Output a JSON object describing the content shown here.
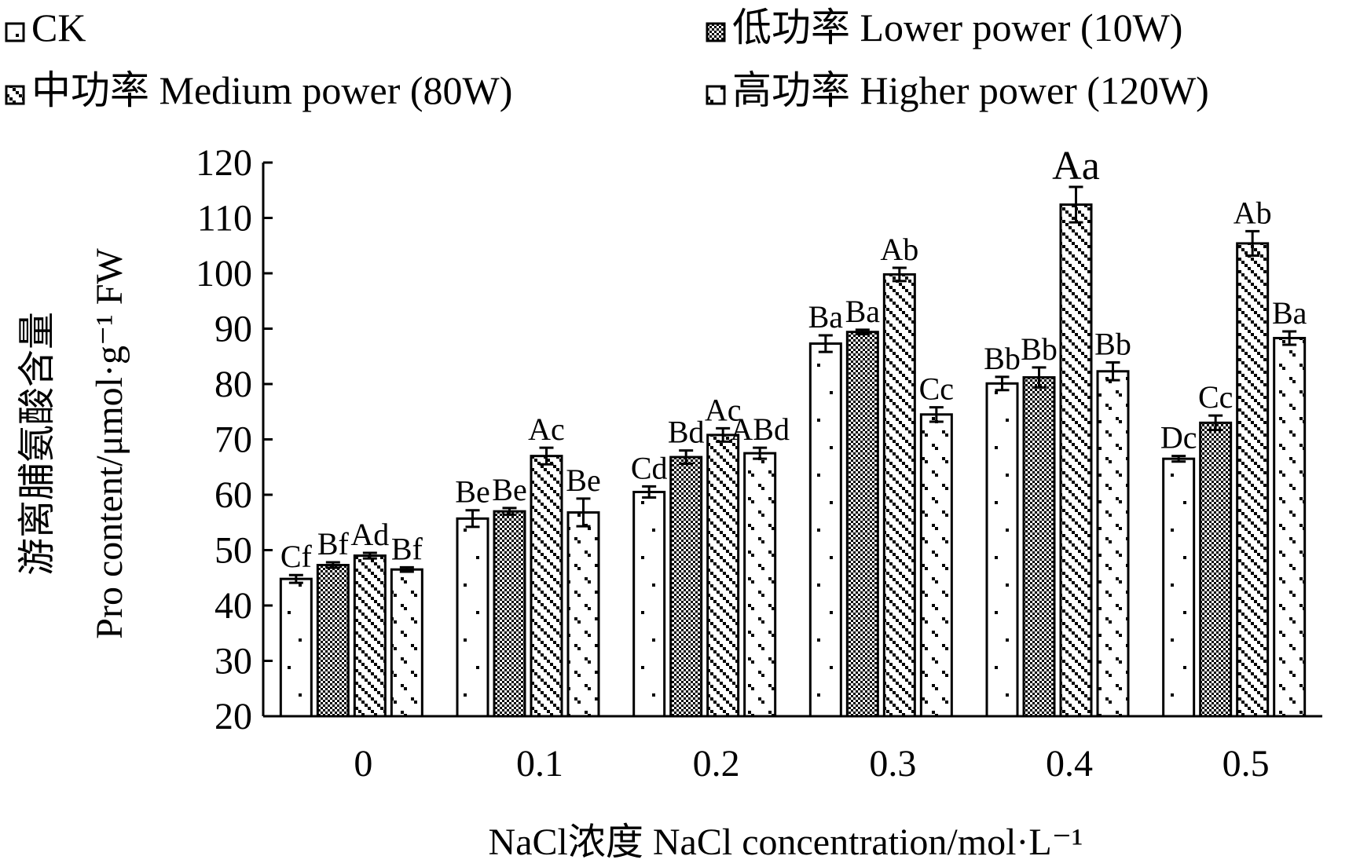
{
  "chart_data": {
    "type": "bar",
    "xlabel": "NaCl浓度 NaCl concentration/mol·L⁻¹",
    "ylabel_cn": "游离脯氨酸含量",
    "ylabel_en": "Pro content/μmol·g⁻¹ FW",
    "ylim": [
      20,
      120
    ],
    "yticks": [
      20,
      30,
      40,
      50,
      60,
      70,
      80,
      90,
      100,
      110,
      120
    ],
    "categories": [
      "0",
      "0.1",
      "0.2",
      "0.3",
      "0.4",
      "0.5"
    ],
    "legend_position": "top",
    "series": [
      {
        "name": "CK",
        "pattern": "dots",
        "values": [
          44.8,
          55.7,
          60.5,
          87.3,
          80.1,
          66.5
        ],
        "errors": [
          0.7,
          1.5,
          1.0,
          1.5,
          1.2,
          0.5
        ],
        "labels": [
          "Cf",
          "Be",
          "Cd",
          "Ba",
          "Bb",
          "Dc"
        ]
      },
      {
        "name": "低功率 Lower power (10W)",
        "pattern": "checker",
        "values": [
          47.3,
          57.0,
          66.8,
          89.4,
          81.2,
          73.0
        ],
        "errors": [
          0.5,
          0.6,
          1.2,
          0.4,
          1.8,
          1.3
        ],
        "labels": [
          "Bf",
          "Be",
          "Bd",
          "Ba",
          "Bb",
          "Cc"
        ]
      },
      {
        "name": "中功率 Medium power (80W)",
        "pattern": "diagonal",
        "values": [
          49.0,
          67.0,
          70.8,
          99.8,
          112.4,
          105.4
        ],
        "errors": [
          0.5,
          1.5,
          1.2,
          1.2,
          3.2,
          2.2
        ],
        "labels": [
          "Ad",
          "Ac",
          "Ac",
          "Ab",
          "Aa",
          "Ab"
        ]
      },
      {
        "name": "高功率 Higher power (120W)",
        "pattern": "dashes",
        "values": [
          46.5,
          56.8,
          67.5,
          74.5,
          82.3,
          88.3
        ],
        "errors": [
          0.4,
          2.5,
          1.0,
          1.3,
          1.6,
          1.2
        ],
        "labels": [
          "Bf",
          "Be",
          "ABd",
          "Cc",
          "Bb",
          "Ba"
        ]
      }
    ]
  }
}
